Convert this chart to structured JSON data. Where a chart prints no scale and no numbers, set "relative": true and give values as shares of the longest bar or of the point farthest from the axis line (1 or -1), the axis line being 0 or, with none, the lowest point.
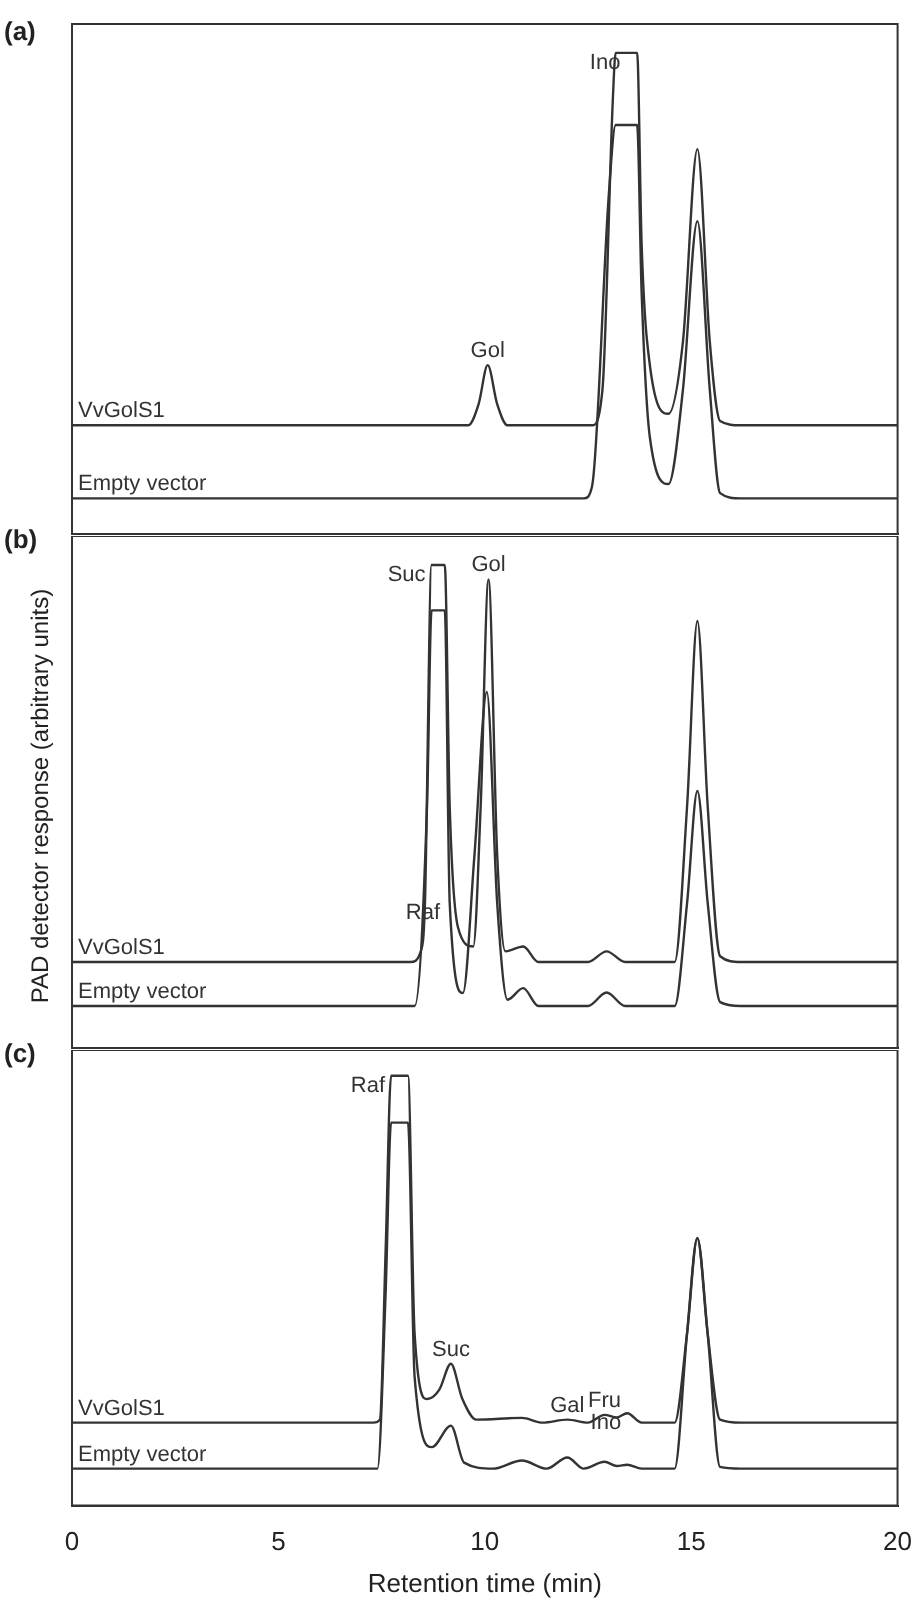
{
  "chart_data": [
    {
      "type": "line",
      "title": "(a)",
      "relative": true,
      "xlim": [
        0,
        20
      ],
      "xticks": [
        0,
        5,
        10,
        15,
        20
      ],
      "tick_labels": false,
      "series": [
        {
          "name": "VvGolS1",
          "color": "#333333",
          "x": [
            0,
            9.6,
            9.85,
            10.07,
            10.3,
            10.55,
            12.6,
            12.85,
            13.1,
            13.17,
            13.69,
            13.8,
            14.0,
            14.45,
            14.8,
            15.15,
            15.45,
            15.7,
            16.2,
            20
          ],
          "values": [
            0.226,
            0.226,
            0.27,
            0.351,
            0.27,
            0.226,
            0.226,
            0.3,
            0.9,
            1,
            1,
            0.6,
            0.35,
            0.25,
            0.4,
            0.8,
            0.4,
            0.235,
            0.226,
            0.226
          ]
        },
        {
          "name": "Empty vector",
          "color": "#333333",
          "x": [
            0,
            12.4,
            12.6,
            13.0,
            13.17,
            13.69,
            13.8,
            14.0,
            14.45,
            14.8,
            15.15,
            15.45,
            15.7,
            16.2,
            20
          ],
          "values": [
            0.074,
            0.074,
            0.1,
            0.7,
            0.85,
            0.85,
            0.5,
            0.2,
            0.104,
            0.3,
            0.65,
            0.3,
            0.085,
            0.074,
            0.074
          ]
        }
      ],
      "annotations": [
        {
          "text": "Gol",
          "x": 10.07,
          "y": 0.351
        },
        {
          "text": "Ino",
          "x": 13.43,
          "y": 1
        }
      ]
    },
    {
      "type": "line",
      "title": "(b)",
      "ylabel": "PAD detector response (arbitrary units)",
      "relative": true,
      "xlim": [
        0,
        20
      ],
      "xticks": [
        0,
        5,
        10,
        15,
        20
      ],
      "tick_labels": false,
      "series": [
        {
          "name": "VvGolS1",
          "color": "#333333",
          "x": [
            0,
            8.2,
            8.45,
            8.55,
            8.71,
            9.03,
            9.15,
            9.35,
            9.72,
            9.9,
            10.09,
            10.3,
            10.5,
            10.93,
            11.3,
            12.5,
            12.95,
            13.4,
            14.6,
            14.9,
            15.15,
            15.4,
            15.7,
            16.2,
            20
          ],
          "values": [
            0.178,
            0.178,
            0.2,
            0.3,
            1,
            1,
            0.5,
            0.25,
            0.21,
            0.5,
            0.97,
            0.4,
            0.2,
            0.21,
            0.178,
            0.178,
            0.2,
            0.178,
            0.178,
            0.5,
            0.884,
            0.5,
            0.19,
            0.178,
            0.178
          ]
        },
        {
          "name": "Empty vector",
          "color": "#333333",
          "x": [
            0,
            8.3,
            8.6,
            8.71,
            9.03,
            9.15,
            9.47,
            9.75,
            10.05,
            10.3,
            10.55,
            10.93,
            11.3,
            12.5,
            12.95,
            13.4,
            14.6,
            14.9,
            15.15,
            15.4,
            15.7,
            16.2,
            20
          ],
          "values": [
            0.087,
            0.087,
            0.5,
            0.906,
            0.906,
            0.3,
            0.114,
            0.4,
            0.737,
            0.3,
            0.1,
            0.124,
            0.087,
            0.087,
            0.115,
            0.087,
            0.087,
            0.3,
            0.532,
            0.3,
            0.095,
            0.087,
            0.087
          ]
        }
      ],
      "annotations": [
        {
          "text": "Raf",
          "x": 8.5,
          "y": 0.25
        },
        {
          "text": "Suc",
          "x": 8.71,
          "y": 1
        },
        {
          "text": "Gol",
          "x": 10.09,
          "y": 0.97
        }
      ]
    },
    {
      "type": "line",
      "title": "(c)",
      "xlabel": "Retention time (min)",
      "relative": true,
      "xlim": [
        0,
        20
      ],
      "xticks": [
        0,
        5,
        10,
        15,
        20
      ],
      "tick_labels": "x",
      "series": [
        {
          "name": "VvGolS1",
          "color": "#333333",
          "x": [
            0,
            7.3,
            7.46,
            7.6,
            7.73,
            8.14,
            8.3,
            8.6,
            8.9,
            9.18,
            9.45,
            9.8,
            10.9,
            11.4,
            12.0,
            12.5,
            12.9,
            13.2,
            13.45,
            13.8,
            14.6,
            14.9,
            15.15,
            15.4,
            15.7,
            16.2,
            20
          ],
          "values": [
            0.193,
            0.193,
            0.2,
            0.6,
            1,
            1,
            0.4,
            0.248,
            0.27,
            0.33,
            0.25,
            0.2,
            0.204,
            0.193,
            0.2,
            0.193,
            0.211,
            0.205,
            0.215,
            0.193,
            0.193,
            0.4,
            0.622,
            0.4,
            0.2,
            0.193,
            0.193
          ]
        },
        {
          "name": "Empty vector",
          "color": "#333333",
          "x": [
            0,
            7.4,
            7.6,
            7.73,
            8.14,
            8.3,
            8.72,
            9.18,
            9.5,
            10.2,
            10.9,
            11.5,
            12.0,
            12.4,
            12.9,
            13.2,
            13.45,
            13.8,
            14.6,
            14.9,
            15.15,
            15.4,
            15.7,
            16.2,
            20
          ],
          "values": [
            0.086,
            0.086,
            0.5,
            0.891,
            0.891,
            0.3,
            0.136,
            0.186,
            0.1,
            0.086,
            0.105,
            0.086,
            0.112,
            0.086,
            0.102,
            0.092,
            0.095,
            0.086,
            0.086,
            0.4,
            0.622,
            0.4,
            0.09,
            0.086,
            0.086
          ]
        }
      ],
      "annotations": [
        {
          "text": "Raf",
          "x": 7.73,
          "y": 1
        },
        {
          "text": "Suc",
          "x": 9.18,
          "y": 0.33
        },
        {
          "text": "Gal",
          "x": 12.0,
          "y": 0.2
        },
        {
          "text": "Fru",
          "x": 12.9,
          "y": 0.211
        },
        {
          "text": "Ino",
          "x": 13.45,
          "y": 0.215
        }
      ]
    }
  ]
}
